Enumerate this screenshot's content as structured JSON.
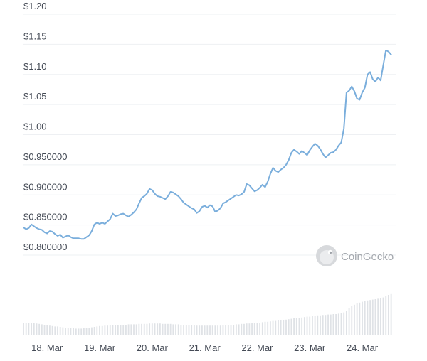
{
  "watermark": {
    "text": "CoinGecko",
    "icon": "gecko-icon"
  },
  "chart_data": {
    "type": "line",
    "series_color": "#7aaedc",
    "volume_color": "#dfe2e6",
    "ylim": [
      0.78,
      1.2
    ],
    "yticks": [
      {
        "value": 0.8,
        "label": "$0.800000"
      },
      {
        "value": 0.85,
        "label": "$0.850000"
      },
      {
        "value": 0.9,
        "label": "$0.900000"
      },
      {
        "value": 0.95,
        "label": "$0.950000"
      },
      {
        "value": 1.0,
        "label": "$1.00"
      },
      {
        "value": 1.05,
        "label": "$1.05"
      },
      {
        "value": 1.1,
        "label": "$1.10"
      },
      {
        "value": 1.15,
        "label": "$1.15"
      },
      {
        "value": 1.2,
        "label": "$1.20"
      }
    ],
    "xlim": [
      17.55,
      24.65
    ],
    "xticks": [
      {
        "value": 18,
        "label": "18. Mar"
      },
      {
        "value": 19,
        "label": "19. Mar"
      },
      {
        "value": 20,
        "label": "20. Mar"
      },
      {
        "value": 21,
        "label": "21. Mar"
      },
      {
        "value": 22,
        "label": "22. Mar"
      },
      {
        "value": 23,
        "label": "23. Mar"
      },
      {
        "value": 24,
        "label": "24. Mar"
      }
    ],
    "grid": true,
    "price": [
      [
        17.55,
        0.846
      ],
      [
        17.6,
        0.843
      ],
      [
        17.65,
        0.845
      ],
      [
        17.7,
        0.851
      ],
      [
        17.75,
        0.848
      ],
      [
        17.8,
        0.845
      ],
      [
        17.85,
        0.843
      ],
      [
        17.9,
        0.842
      ],
      [
        17.95,
        0.838
      ],
      [
        18.0,
        0.836
      ],
      [
        18.05,
        0.84
      ],
      [
        18.1,
        0.839
      ],
      [
        18.15,
        0.835
      ],
      [
        18.2,
        0.832
      ],
      [
        18.25,
        0.834
      ],
      [
        18.3,
        0.829
      ],
      [
        18.35,
        0.831
      ],
      [
        18.4,
        0.833
      ],
      [
        18.45,
        0.83
      ],
      [
        18.5,
        0.828
      ],
      [
        18.55,
        0.828
      ],
      [
        18.6,
        0.828
      ],
      [
        18.65,
        0.827
      ],
      [
        18.7,
        0.827
      ],
      [
        18.75,
        0.83
      ],
      [
        18.8,
        0.833
      ],
      [
        18.85,
        0.84
      ],
      [
        18.9,
        0.851
      ],
      [
        18.95,
        0.854
      ],
      [
        19.0,
        0.852
      ],
      [
        19.05,
        0.854
      ],
      [
        19.1,
        0.852
      ],
      [
        19.15,
        0.856
      ],
      [
        19.2,
        0.86
      ],
      [
        19.25,
        0.869
      ],
      [
        19.3,
        0.865
      ],
      [
        19.35,
        0.866
      ],
      [
        19.4,
        0.868
      ],
      [
        19.45,
        0.869
      ],
      [
        19.5,
        0.866
      ],
      [
        19.55,
        0.864
      ],
      [
        19.6,
        0.867
      ],
      [
        19.65,
        0.871
      ],
      [
        19.7,
        0.876
      ],
      [
        19.75,
        0.886
      ],
      [
        19.8,
        0.895
      ],
      [
        19.85,
        0.898
      ],
      [
        19.9,
        0.902
      ],
      [
        19.95,
        0.91
      ],
      [
        20.0,
        0.908
      ],
      [
        20.05,
        0.902
      ],
      [
        20.1,
        0.898
      ],
      [
        20.15,
        0.897
      ],
      [
        20.2,
        0.895
      ],
      [
        20.25,
        0.893
      ],
      [
        20.3,
        0.898
      ],
      [
        20.35,
        0.905
      ],
      [
        20.4,
        0.904
      ],
      [
        20.45,
        0.901
      ],
      [
        20.5,
        0.898
      ],
      [
        20.55,
        0.893
      ],
      [
        20.6,
        0.887
      ],
      [
        20.65,
        0.884
      ],
      [
        20.7,
        0.881
      ],
      [
        20.75,
        0.878
      ],
      [
        20.8,
        0.876
      ],
      [
        20.85,
        0.87
      ],
      [
        20.9,
        0.873
      ],
      [
        20.95,
        0.88
      ],
      [
        21.0,
        0.882
      ],
      [
        21.05,
        0.879
      ],
      [
        21.1,
        0.883
      ],
      [
        21.15,
        0.881
      ],
      [
        21.2,
        0.872
      ],
      [
        21.25,
        0.874
      ],
      [
        21.3,
        0.878
      ],
      [
        21.35,
        0.886
      ],
      [
        21.4,
        0.888
      ],
      [
        21.45,
        0.891
      ],
      [
        21.5,
        0.894
      ],
      [
        21.55,
        0.897
      ],
      [
        21.6,
        0.9
      ],
      [
        21.65,
        0.899
      ],
      [
        21.7,
        0.901
      ],
      [
        21.75,
        0.905
      ],
      [
        21.8,
        0.918
      ],
      [
        21.85,
        0.916
      ],
      [
        21.9,
        0.911
      ],
      [
        21.95,
        0.906
      ],
      [
        22.0,
        0.908
      ],
      [
        22.05,
        0.912
      ],
      [
        22.1,
        0.917
      ],
      [
        22.15,
        0.913
      ],
      [
        22.2,
        0.922
      ],
      [
        22.25,
        0.935
      ],
      [
        22.3,
        0.945
      ],
      [
        22.35,
        0.94
      ],
      [
        22.4,
        0.938
      ],
      [
        22.45,
        0.942
      ],
      [
        22.5,
        0.945
      ],
      [
        22.55,
        0.95
      ],
      [
        22.6,
        0.958
      ],
      [
        22.65,
        0.97
      ],
      [
        22.7,
        0.975
      ],
      [
        22.75,
        0.972
      ],
      [
        22.8,
        0.968
      ],
      [
        22.85,
        0.973
      ],
      [
        22.9,
        0.97
      ],
      [
        22.95,
        0.966
      ],
      [
        23.0,
        0.974
      ],
      [
        23.05,
        0.98
      ],
      [
        23.1,
        0.985
      ],
      [
        23.15,
        0.982
      ],
      [
        23.2,
        0.976
      ],
      [
        23.25,
        0.968
      ],
      [
        23.3,
        0.962
      ],
      [
        23.35,
        0.966
      ],
      [
        23.4,
        0.97
      ],
      [
        23.45,
        0.971
      ],
      [
        23.5,
        0.975
      ],
      [
        23.55,
        0.982
      ],
      [
        23.6,
        0.987
      ],
      [
        23.65,
        1.01
      ],
      [
        23.7,
        1.07
      ],
      [
        23.75,
        1.073
      ],
      [
        23.8,
        1.08
      ],
      [
        23.85,
        1.072
      ],
      [
        23.9,
        1.06
      ],
      [
        23.95,
        1.058
      ],
      [
        24.0,
        1.07
      ],
      [
        24.05,
        1.078
      ],
      [
        24.1,
        1.1
      ],
      [
        24.15,
        1.104
      ],
      [
        24.2,
        1.092
      ],
      [
        24.25,
        1.088
      ],
      [
        24.3,
        1.095
      ],
      [
        24.35,
        1.09
      ],
      [
        24.4,
        1.115
      ],
      [
        24.45,
        1.14
      ],
      [
        24.5,
        1.138
      ],
      [
        24.55,
        1.133
      ]
    ],
    "volume_ylim": [
      0,
      1
    ],
    "volume": [
      [
        17.55,
        0.3
      ],
      [
        17.6,
        0.3
      ],
      [
        17.65,
        0.29
      ],
      [
        17.7,
        0.3
      ],
      [
        17.75,
        0.29
      ],
      [
        17.8,
        0.28
      ],
      [
        17.85,
        0.27
      ],
      [
        17.9,
        0.26
      ],
      [
        17.95,
        0.25
      ],
      [
        18.0,
        0.24
      ],
      [
        18.05,
        0.23
      ],
      [
        18.1,
        0.22
      ],
      [
        18.15,
        0.21
      ],
      [
        18.2,
        0.21
      ],
      [
        18.25,
        0.2
      ],
      [
        18.3,
        0.19
      ],
      [
        18.35,
        0.18
      ],
      [
        18.4,
        0.18
      ],
      [
        18.45,
        0.17
      ],
      [
        18.5,
        0.17
      ],
      [
        18.55,
        0.16
      ],
      [
        18.6,
        0.16
      ],
      [
        18.65,
        0.16
      ],
      [
        18.7,
        0.17
      ],
      [
        18.75,
        0.17
      ],
      [
        18.8,
        0.18
      ],
      [
        18.85,
        0.19
      ],
      [
        18.9,
        0.2
      ],
      [
        18.95,
        0.21
      ],
      [
        19.0,
        0.22
      ],
      [
        19.05,
        0.22
      ],
      [
        19.1,
        0.23
      ],
      [
        19.15,
        0.23
      ],
      [
        19.2,
        0.24
      ],
      [
        19.25,
        0.24
      ],
      [
        19.3,
        0.24
      ],
      [
        19.35,
        0.25
      ],
      [
        19.4,
        0.25
      ],
      [
        19.45,
        0.25
      ],
      [
        19.5,
        0.25
      ],
      [
        19.55,
        0.26
      ],
      [
        19.6,
        0.26
      ],
      [
        19.65,
        0.26
      ],
      [
        19.7,
        0.26
      ],
      [
        19.75,
        0.27
      ],
      [
        19.8,
        0.27
      ],
      [
        19.85,
        0.27
      ],
      [
        19.9,
        0.27
      ],
      [
        19.95,
        0.28
      ],
      [
        20.0,
        0.28
      ],
      [
        20.05,
        0.28
      ],
      [
        20.1,
        0.28
      ],
      [
        20.15,
        0.28
      ],
      [
        20.2,
        0.27
      ],
      [
        20.25,
        0.27
      ],
      [
        20.3,
        0.27
      ],
      [
        20.35,
        0.27
      ],
      [
        20.4,
        0.26
      ],
      [
        20.45,
        0.26
      ],
      [
        20.5,
        0.26
      ],
      [
        20.55,
        0.25
      ],
      [
        20.6,
        0.25
      ],
      [
        20.65,
        0.25
      ],
      [
        20.7,
        0.24
      ],
      [
        20.75,
        0.24
      ],
      [
        20.8,
        0.24
      ],
      [
        20.85,
        0.23
      ],
      [
        20.9,
        0.23
      ],
      [
        20.95,
        0.23
      ],
      [
        21.0,
        0.23
      ],
      [
        21.05,
        0.23
      ],
      [
        21.1,
        0.23
      ],
      [
        21.15,
        0.23
      ],
      [
        21.2,
        0.23
      ],
      [
        21.25,
        0.23
      ],
      [
        21.3,
        0.23
      ],
      [
        21.35,
        0.24
      ],
      [
        21.4,
        0.24
      ],
      [
        21.45,
        0.24
      ],
      [
        21.5,
        0.25
      ],
      [
        21.55,
        0.25
      ],
      [
        21.6,
        0.26
      ],
      [
        21.65,
        0.26
      ],
      [
        21.7,
        0.27
      ],
      [
        21.75,
        0.27
      ],
      [
        21.8,
        0.28
      ],
      [
        21.85,
        0.28
      ],
      [
        21.9,
        0.29
      ],
      [
        21.95,
        0.29
      ],
      [
        22.0,
        0.3
      ],
      [
        22.05,
        0.3
      ],
      [
        22.1,
        0.31
      ],
      [
        22.15,
        0.32
      ],
      [
        22.2,
        0.32
      ],
      [
        22.25,
        0.33
      ],
      [
        22.3,
        0.34
      ],
      [
        22.35,
        0.34
      ],
      [
        22.4,
        0.35
      ],
      [
        22.45,
        0.36
      ],
      [
        22.5,
        0.36
      ],
      [
        22.55,
        0.37
      ],
      [
        22.6,
        0.38
      ],
      [
        22.65,
        0.39
      ],
      [
        22.7,
        0.4
      ],
      [
        22.75,
        0.4
      ],
      [
        22.8,
        0.41
      ],
      [
        22.85,
        0.42
      ],
      [
        22.9,
        0.43
      ],
      [
        22.95,
        0.44
      ],
      [
        23.0,
        0.44
      ],
      [
        23.05,
        0.45
      ],
      [
        23.1,
        0.46
      ],
      [
        23.15,
        0.47
      ],
      [
        23.2,
        0.47
      ],
      [
        23.25,
        0.48
      ],
      [
        23.3,
        0.48
      ],
      [
        23.35,
        0.49
      ],
      [
        23.4,
        0.49
      ],
      [
        23.45,
        0.5
      ],
      [
        23.5,
        0.5
      ],
      [
        23.55,
        0.51
      ],
      [
        23.6,
        0.52
      ],
      [
        23.65,
        0.54
      ],
      [
        23.7,
        0.58
      ],
      [
        23.75,
        0.64
      ],
      [
        23.8,
        0.69
      ],
      [
        23.85,
        0.72
      ],
      [
        23.9,
        0.75
      ],
      [
        23.95,
        0.77
      ],
      [
        24.0,
        0.79
      ],
      [
        24.05,
        0.81
      ],
      [
        24.1,
        0.82
      ],
      [
        24.15,
        0.83
      ],
      [
        24.2,
        0.84
      ],
      [
        24.25,
        0.85
      ],
      [
        24.3,
        0.86
      ],
      [
        24.35,
        0.87
      ],
      [
        24.4,
        0.89
      ],
      [
        24.45,
        0.92
      ],
      [
        24.5,
        0.95
      ],
      [
        24.55,
        0.97
      ]
    ]
  }
}
